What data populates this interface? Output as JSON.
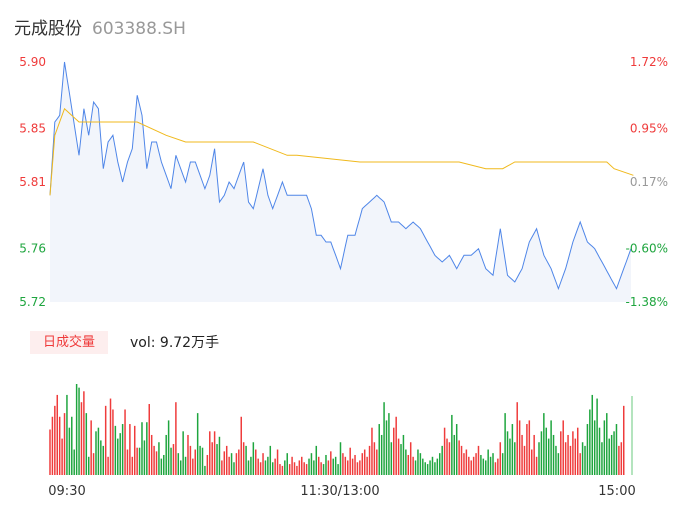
{
  "header": {
    "name": "元成股份",
    "code": "603388.SH"
  },
  "indicator": {
    "tab_label": "日成交量",
    "volume_text": "vol: 9.72万手"
  },
  "colors": {
    "up": "#ef3b3b",
    "down": "#1ea53e",
    "neutral": "#999999",
    "price_line": "#4f86e8",
    "avg_line": "#f0b91c"
  },
  "chart_data": [
    {
      "type": "line",
      "title": "",
      "x_labels": [
        "09:30",
        "11:30/13:00",
        "15:00"
      ],
      "y_left_ticks": [
        "5.90",
        "5.85",
        "5.81",
        "5.76",
        "5.72"
      ],
      "y_right_ticks": [
        "1.72%",
        "0.95%",
        "0.17%",
        "-0.60%",
        "-1.38%"
      ],
      "ylim": [
        5.72,
        5.9
      ],
      "prev_close": 5.8,
      "n_minutes": 241,
      "series": [
        {
          "key": "price",
          "anchors": [
            [
              0,
              5.8
            ],
            [
              2,
              5.855
            ],
            [
              4,
              5.86
            ],
            [
              6,
              5.9
            ],
            [
              9,
              5.865
            ],
            [
              12,
              5.83
            ],
            [
              14,
              5.865
            ],
            [
              16,
              5.845
            ],
            [
              18,
              5.87
            ],
            [
              20,
              5.865
            ],
            [
              22,
              5.82
            ],
            [
              24,
              5.84
            ],
            [
              26,
              5.845
            ],
            [
              28,
              5.825
            ],
            [
              30,
              5.81
            ],
            [
              32,
              5.825
            ],
            [
              34,
              5.835
            ],
            [
              36,
              5.875
            ],
            [
              38,
              5.86
            ],
            [
              40,
              5.82
            ],
            [
              42,
              5.84
            ],
            [
              44,
              5.84
            ],
            [
              46,
              5.825
            ],
            [
              48,
              5.815
            ],
            [
              50,
              5.805
            ],
            [
              52,
              5.83
            ],
            [
              54,
              5.82
            ],
            [
              56,
              5.81
            ],
            [
              58,
              5.825
            ],
            [
              60,
              5.825
            ],
            [
              62,
              5.815
            ],
            [
              64,
              5.805
            ],
            [
              66,
              5.815
            ],
            [
              68,
              5.835
            ],
            [
              70,
              5.795
            ],
            [
              72,
              5.8
            ],
            [
              74,
              5.81
            ],
            [
              76,
              5.805
            ],
            [
              78,
              5.815
            ],
            [
              80,
              5.825
            ],
            [
              82,
              5.795
            ],
            [
              84,
              5.79
            ],
            [
              86,
              5.805
            ],
            [
              88,
              5.82
            ],
            [
              90,
              5.8
            ],
            [
              92,
              5.79
            ],
            [
              94,
              5.8
            ],
            [
              96,
              5.81
            ],
            [
              98,
              5.8
            ],
            [
              100,
              5.8
            ],
            [
              102,
              5.8
            ],
            [
              104,
              5.8
            ],
            [
              106,
              5.8
            ],
            [
              108,
              5.79
            ],
            [
              110,
              5.77
            ],
            [
              112,
              5.77
            ],
            [
              114,
              5.765
            ],
            [
              116,
              5.765
            ],
            [
              118,
              5.755
            ],
            [
              120,
              5.745
            ],
            [
              123,
              5.77
            ],
            [
              126,
              5.77
            ],
            [
              129,
              5.79
            ],
            [
              132,
              5.795
            ],
            [
              135,
              5.8
            ],
            [
              138,
              5.795
            ],
            [
              141,
              5.78
            ],
            [
              144,
              5.78
            ],
            [
              147,
              5.775
            ],
            [
              150,
              5.78
            ],
            [
              153,
              5.775
            ],
            [
              156,
              5.765
            ],
            [
              159,
              5.755
            ],
            [
              162,
              5.75
            ],
            [
              165,
              5.755
            ],
            [
              168,
              5.745
            ],
            [
              171,
              5.755
            ],
            [
              174,
              5.755
            ],
            [
              177,
              5.76
            ],
            [
              180,
              5.745
            ],
            [
              183,
              5.74
            ],
            [
              186,
              5.775
            ],
            [
              189,
              5.74
            ],
            [
              192,
              5.735
            ],
            [
              195,
              5.745
            ],
            [
              198,
              5.765
            ],
            [
              201,
              5.775
            ],
            [
              204,
              5.755
            ],
            [
              207,
              5.745
            ],
            [
              210,
              5.73
            ],
            [
              213,
              5.745
            ],
            [
              216,
              5.765
            ],
            [
              219,
              5.78
            ],
            [
              222,
              5.765
            ],
            [
              225,
              5.76
            ],
            [
              228,
              5.75
            ],
            [
              231,
              5.74
            ],
            [
              234,
              5.73
            ],
            [
              237,
              5.745
            ],
            [
              240,
              5.76
            ]
          ],
          "fine_detail": "stepped intraday minute line, high 5.90 near 09:36, low near 5.72 around 14:50"
        },
        {
          "key": "average",
          "anchors": [
            [
              0,
              5.8
            ],
            [
              2,
              5.845
            ],
            [
              6,
              5.865
            ],
            [
              12,
              5.855
            ],
            [
              36,
              5.855
            ],
            [
              48,
              5.845
            ],
            [
              56,
              5.84
            ],
            [
              84,
              5.84
            ],
            [
              98,
              5.83
            ],
            [
              102,
              5.83
            ],
            [
              128,
              5.825
            ],
            [
              169,
              5.825
            ],
            [
              180,
              5.82
            ],
            [
              187,
              5.82
            ],
            [
              192,
              5.825
            ],
            [
              230,
              5.825
            ],
            [
              233,
              5.82
            ],
            [
              241,
              5.815
            ]
          ]
        }
      ]
    },
    {
      "type": "bar",
      "title": "",
      "ylabel": "",
      "n_minutes": 241,
      "series": [
        {
          "key": "volume",
          "note": "per-minute volume bars; colour by price change (red up, green down)",
          "values": [
            25,
            32,
            38,
            44,
            32,
            20,
            34,
            44,
            26,
            32,
            14,
            50,
            48,
            40,
            46,
            34,
            10,
            30,
            12,
            24,
            26,
            19,
            16,
            38,
            10,
            42,
            36,
            27,
            20,
            23,
            28,
            36,
            14,
            28,
            10,
            27,
            15,
            15,
            29,
            19,
            29,
            39,
            22,
            16,
            13,
            18,
            9,
            11,
            22,
            30,
            15,
            17,
            40,
            12,
            8,
            24,
            10,
            22,
            16,
            9,
            14,
            34,
            16,
            15,
            5,
            11,
            24,
            18,
            24,
            17,
            21,
            8,
            13,
            16,
            10,
            12,
            7,
            12,
            14,
            32,
            18,
            16,
            8,
            10,
            18,
            14,
            9,
            7,
            12,
            8,
            10,
            16,
            7,
            9,
            14,
            6,
            5,
            8,
            12,
            6,
            10,
            7,
            5,
            8,
            10,
            7,
            6,
            9,
            12,
            8,
            16,
            10,
            7,
            6,
            11,
            8,
            13,
            9,
            10,
            6,
            18,
            12,
            10,
            8,
            15,
            9,
            11,
            7,
            8,
            12,
            14,
            10,
            16,
            26,
            18,
            14,
            28,
            22,
            40,
            30,
            34,
            18,
            26,
            32,
            20,
            17,
            22,
            14,
            11,
            18,
            10,
            8,
            14,
            12,
            9,
            7,
            6,
            8,
            10,
            7,
            9,
            12,
            16,
            26,
            20,
            18,
            33,
            22,
            28,
            19,
            16,
            12,
            14,
            10,
            8,
            10,
            12,
            16,
            11,
            9,
            8,
            14,
            10,
            12,
            7,
            9,
            18,
            12,
            34,
            24,
            20,
            28,
            18,
            40,
            30,
            22,
            16,
            28,
            30,
            14,
            22,
            10,
            18,
            24,
            34,
            26,
            20,
            30,
            22,
            16,
            12,
            24,
            30,
            18,
            22,
            16,
            24,
            20,
            26,
            12,
            18,
            16,
            28,
            36,
            44,
            30,
            42,
            26,
            18,
            30,
            34,
            20,
            22,
            24,
            28,
            16,
            18,
            38
          ]
        }
      ]
    }
  ]
}
